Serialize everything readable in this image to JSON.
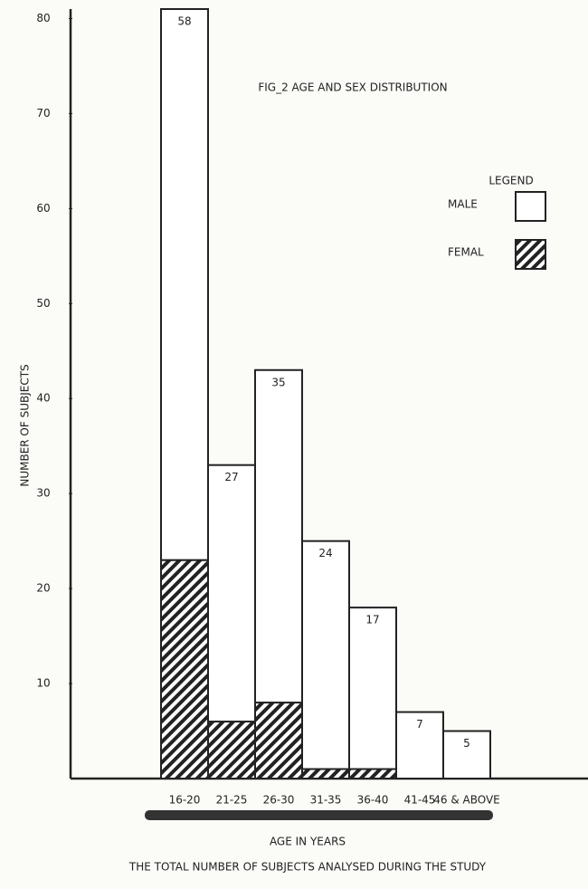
{
  "chart_data": {
    "type": "bar",
    "stacked": true,
    "title": "FIG_2 AGE AND SEX DISTRIBUTION",
    "legend_title": "LEGEND",
    "y_label": "NUMBER OF SUBJECTS",
    "x_label": "AGE IN YEARS",
    "caption": "THE TOTAL NUMBER OF SUBJECTS ANALYSED DURING THE STUDY",
    "categories": [
      "16-20",
      "21-25",
      "26-30",
      "31-35",
      "36-40",
      "41-45",
      "46 & ABOVE"
    ],
    "series": [
      {
        "name": "FEMAL",
        "color": "#222222",
        "values": [
          23,
          6,
          8,
          1,
          1,
          null,
          null
        ]
      },
      {
        "name": "MALE",
        "color": "#ffffff",
        "values": [
          58,
          27,
          35,
          24,
          17,
          7,
          5
        ]
      }
    ],
    "ylim": [
      0,
      81
    ],
    "yticks": [
      10,
      20,
      30,
      40,
      50,
      60,
      70,
      80
    ]
  }
}
